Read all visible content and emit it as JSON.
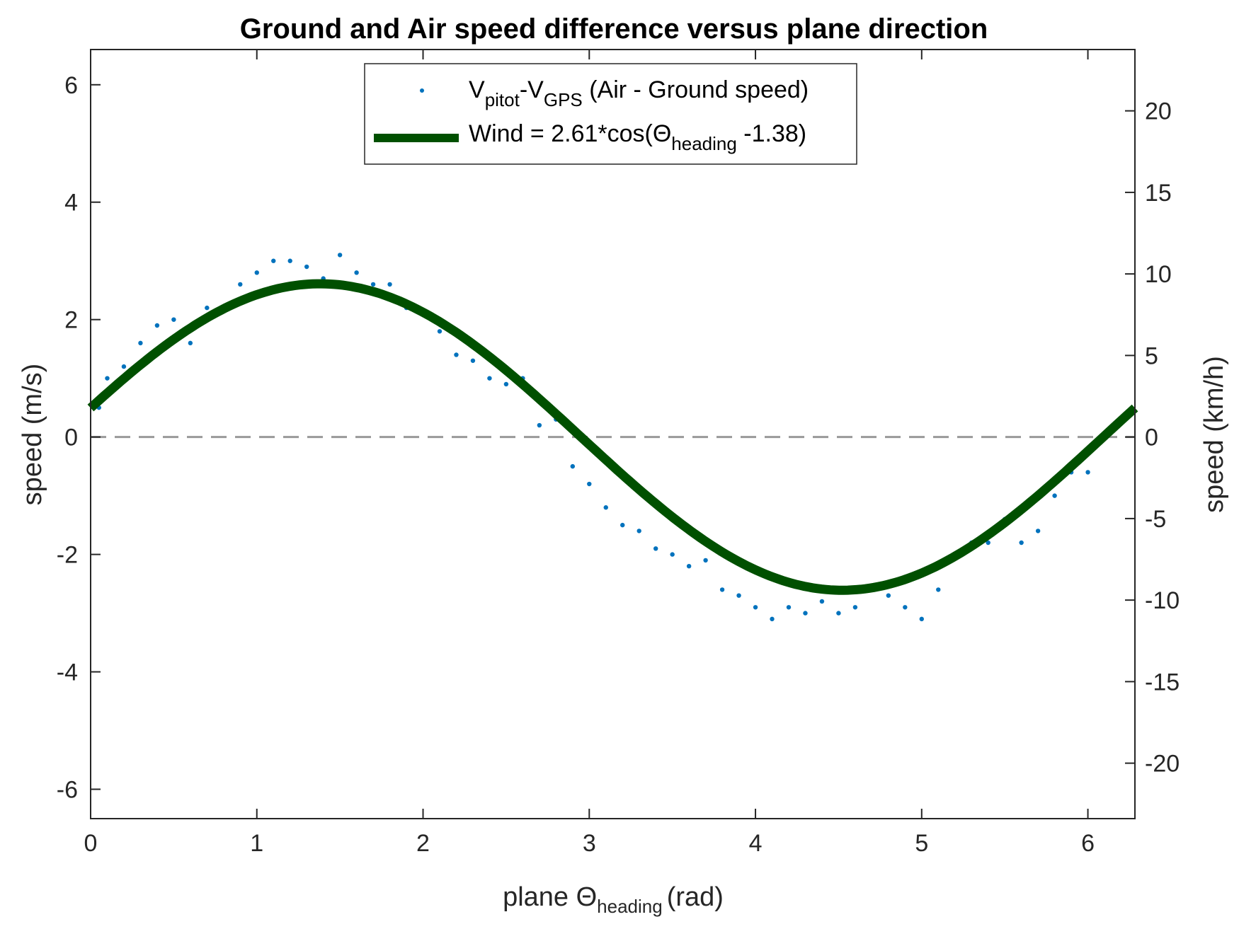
{
  "chart_data": {
    "type": "scatter",
    "title": "Ground and Air speed difference versus plane direction",
    "xlabel": {
      "main": "plane Θ",
      "sub": "heading",
      "unit": "(rad)"
    },
    "ylabel_left": "speed (m/s)",
    "ylabel_right": "speed (km/h)",
    "xlim": [
      0,
      6.283
    ],
    "ylim_left": [
      -6.5,
      6.6
    ],
    "ylim_right": [
      -23.4,
      23.76
    ],
    "x_ticks": [
      "0",
      "1",
      "2",
      "3",
      "4",
      "5",
      "6"
    ],
    "y_ticks_left": [
      "-6",
      "-4",
      "-2",
      "0",
      "2",
      "4",
      "6"
    ],
    "y_ticks_right": [
      "-20",
      "-15",
      "-10",
      "-5",
      "0",
      "5",
      "10",
      "15",
      "20"
    ],
    "zero_line": {
      "value": 0,
      "style": "dashed",
      "color": "#999999"
    },
    "series": [
      {
        "kind": "scatter",
        "color": "#0072BD",
        "legend": {
          "base1": "V",
          "sub1": "pitot",
          "mid": "-V",
          "sub2": "GPS",
          "rest": " (Air - Ground speed)"
        },
        "approx_points": [
          [
            0.05,
            0.5
          ],
          [
            0.1,
            1.0
          ],
          [
            0.2,
            1.2
          ],
          [
            0.3,
            1.6
          ],
          [
            0.4,
            1.9
          ],
          [
            0.5,
            2.0
          ],
          [
            0.6,
            1.6
          ],
          [
            0.7,
            2.2
          ],
          [
            0.8,
            2.2
          ],
          [
            0.9,
            2.6
          ],
          [
            1.0,
            2.8
          ],
          [
            1.1,
            3.0
          ],
          [
            1.2,
            3.0
          ],
          [
            1.3,
            2.9
          ],
          [
            1.4,
            2.7
          ],
          [
            1.5,
            3.1
          ],
          [
            1.6,
            2.8
          ],
          [
            1.7,
            2.6
          ],
          [
            1.8,
            2.6
          ],
          [
            1.9,
            2.2
          ],
          [
            2.0,
            2.1
          ],
          [
            2.1,
            1.8
          ],
          [
            2.2,
            1.4
          ],
          [
            2.3,
            1.3
          ],
          [
            2.4,
            1.0
          ],
          [
            2.5,
            0.9
          ],
          [
            2.6,
            1.0
          ],
          [
            2.7,
            0.2
          ],
          [
            2.8,
            0.3
          ],
          [
            2.9,
            -0.5
          ],
          [
            3.0,
            -0.8
          ],
          [
            3.1,
            -1.2
          ],
          [
            3.2,
            -1.5
          ],
          [
            3.3,
            -1.6
          ],
          [
            3.4,
            -1.9
          ],
          [
            3.5,
            -2.0
          ],
          [
            3.6,
            -2.2
          ],
          [
            3.7,
            -2.1
          ],
          [
            3.8,
            -2.6
          ],
          [
            3.9,
            -2.7
          ],
          [
            4.0,
            -2.9
          ],
          [
            4.1,
            -3.1
          ],
          [
            4.2,
            -2.9
          ],
          [
            4.3,
            -3.0
          ],
          [
            4.4,
            -2.8
          ],
          [
            4.5,
            -3.0
          ],
          [
            4.6,
            -2.9
          ],
          [
            4.7,
            -2.6
          ],
          [
            4.8,
            -2.7
          ],
          [
            4.9,
            -2.9
          ],
          [
            5.0,
            -3.1
          ],
          [
            5.1,
            -2.6
          ],
          [
            5.2,
            -2.0
          ],
          [
            5.3,
            -1.8
          ],
          [
            5.4,
            -1.8
          ],
          [
            5.5,
            -1.4
          ],
          [
            5.6,
            -1.8
          ],
          [
            5.7,
            -1.6
          ],
          [
            5.8,
            -1.0
          ],
          [
            5.9,
            -0.6
          ],
          [
            6.0,
            -0.6
          ],
          [
            6.1,
            0.0
          ],
          [
            6.2,
            0.3
          ]
        ]
      },
      {
        "kind": "line",
        "color": "#005000",
        "legend": {
          "text1": "Wind = 2.61*cos(Θ",
          "sub": "heading",
          "text2": " -1.38)"
        },
        "amplitude": 2.61,
        "phase": 1.38
      }
    ],
    "legend_position": "top-center"
  }
}
